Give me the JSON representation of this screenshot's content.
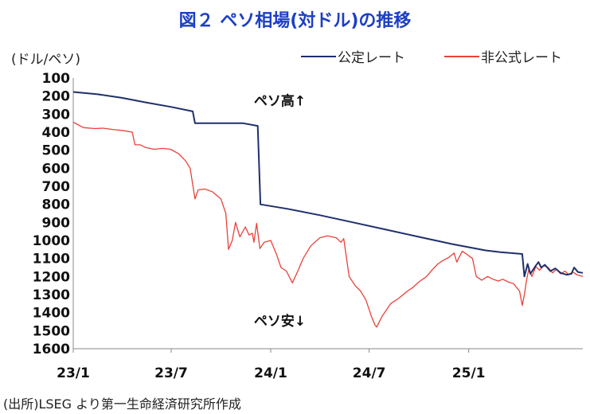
{
  "title": "図２ ペソ相場(対ドル)の推移",
  "unit_label": "(ドル/ペソ)",
  "source": "(出所)LSEG より第一生命経済研究所作成",
  "colors": {
    "official": "#1f2f6b",
    "unofficial": "#e8423a",
    "title": "#1c3fc4"
  },
  "chart_data": {
    "type": "line",
    "title": "図２ ペソ相場(対ドル)の推移",
    "ylabel": "(ドル/ペソ)",
    "xlabel": "",
    "ylim": [
      100,
      1600
    ],
    "y_inverted": true,
    "y_ticks": [
      100,
      200,
      300,
      400,
      500,
      600,
      700,
      800,
      900,
      1000,
      1100,
      1200,
      1300,
      1400,
      1500,
      1600
    ],
    "x_range": [
      "2023-01-01",
      "2025-07-31"
    ],
    "x_ticks": [
      {
        "date": "2023-01-01",
        "label": "23/1"
      },
      {
        "date": "2023-07-01",
        "label": "23/7"
      },
      {
        "date": "2024-01-01",
        "label": "24/1"
      },
      {
        "date": "2024-07-01",
        "label": "24/7"
      },
      {
        "date": "2025-01-01",
        "label": "25/1"
      }
    ],
    "grid": false,
    "legend": "top-right",
    "annotations": [
      {
        "text": "ペソ高↑",
        "date": "2023-12-01",
        "value": 225
      },
      {
        "text": "ペソ安↓",
        "date": "2023-12-01",
        "value": 1445
      }
    ],
    "series": [
      {
        "name": "公定レート",
        "color": "#1f2f6b",
        "points": [
          [
            "2023-01-01",
            177
          ],
          [
            "2023-02-15",
            190
          ],
          [
            "2023-04-01",
            210
          ],
          [
            "2023-05-15",
            235
          ],
          [
            "2023-07-01",
            260
          ],
          [
            "2023-08-10",
            285
          ],
          [
            "2023-08-14",
            350
          ],
          [
            "2023-09-30",
            350
          ],
          [
            "2023-11-10",
            350
          ],
          [
            "2023-12-08",
            365
          ],
          [
            "2023-12-13",
            800
          ],
          [
            "2024-02-01",
            825
          ],
          [
            "2024-04-01",
            860
          ],
          [
            "2024-06-01",
            900
          ],
          [
            "2024-08-01",
            940
          ],
          [
            "2024-10-01",
            980
          ],
          [
            "2024-12-01",
            1020
          ],
          [
            "2025-02-01",
            1055
          ],
          [
            "2025-03-01",
            1065
          ],
          [
            "2025-04-10",
            1075
          ],
          [
            "2025-04-14",
            1200
          ],
          [
            "2025-04-20",
            1130
          ],
          [
            "2025-04-25",
            1185
          ],
          [
            "2025-05-05",
            1140
          ],
          [
            "2025-05-10",
            1120
          ],
          [
            "2025-05-15",
            1150
          ],
          [
            "2025-05-22",
            1135
          ],
          [
            "2025-06-01",
            1170
          ],
          [
            "2025-06-10",
            1155
          ],
          [
            "2025-06-20",
            1180
          ],
          [
            "2025-07-01",
            1190
          ],
          [
            "2025-07-10",
            1185
          ],
          [
            "2025-07-15",
            1150
          ],
          [
            "2025-07-22",
            1175
          ],
          [
            "2025-07-31",
            1180
          ]
        ]
      },
      {
        "name": "非公式レート",
        "color": "#e8423a",
        "points": [
          [
            "2023-01-01",
            345
          ],
          [
            "2023-01-20",
            375
          ],
          [
            "2023-02-10",
            380
          ],
          [
            "2023-02-25",
            378
          ],
          [
            "2023-03-15",
            385
          ],
          [
            "2023-04-05",
            392
          ],
          [
            "2023-04-20",
            400
          ],
          [
            "2023-04-25",
            470
          ],
          [
            "2023-05-05",
            470
          ],
          [
            "2023-05-15",
            485
          ],
          [
            "2023-05-30",
            495
          ],
          [
            "2023-06-15",
            490
          ],
          [
            "2023-06-30",
            495
          ],
          [
            "2023-07-15",
            520
          ],
          [
            "2023-07-28",
            560
          ],
          [
            "2023-08-05",
            600
          ],
          [
            "2023-08-14",
            770
          ],
          [
            "2023-08-20",
            720
          ],
          [
            "2023-09-01",
            715
          ],
          [
            "2023-09-15",
            730
          ],
          [
            "2023-10-01",
            770
          ],
          [
            "2023-10-10",
            850
          ],
          [
            "2023-10-15",
            1050
          ],
          [
            "2023-10-22",
            1000
          ],
          [
            "2023-10-28",
            900
          ],
          [
            "2023-11-05",
            980
          ],
          [
            "2023-11-15",
            925
          ],
          [
            "2023-11-22",
            970
          ],
          [
            "2023-11-28",
            960
          ],
          [
            "2023-12-01",
            1010
          ],
          [
            "2023-12-06",
            905
          ],
          [
            "2023-12-12",
            1045
          ],
          [
            "2023-12-20",
            1010
          ],
          [
            "2024-01-01",
            1000
          ],
          [
            "2024-01-12",
            1080
          ],
          [
            "2024-01-20",
            1150
          ],
          [
            "2024-01-30",
            1170
          ],
          [
            "2024-02-10",
            1235
          ],
          [
            "2024-02-20",
            1170
          ],
          [
            "2024-03-01",
            1100
          ],
          [
            "2024-03-15",
            1030
          ],
          [
            "2024-04-01",
            985
          ],
          [
            "2024-04-15",
            975
          ],
          [
            "2024-05-01",
            985
          ],
          [
            "2024-05-10",
            1010
          ],
          [
            "2024-05-15",
            990
          ],
          [
            "2024-05-25",
            1200
          ],
          [
            "2024-06-05",
            1250
          ],
          [
            "2024-06-15",
            1280
          ],
          [
            "2024-06-25",
            1330
          ],
          [
            "2024-07-05",
            1420
          ],
          [
            "2024-07-12",
            1470
          ],
          [
            "2024-07-15",
            1480
          ],
          [
            "2024-07-25",
            1420
          ],
          [
            "2024-08-10",
            1350
          ],
          [
            "2024-08-25",
            1320
          ],
          [
            "2024-09-10",
            1280
          ],
          [
            "2024-09-20",
            1260
          ],
          [
            "2024-10-01",
            1230
          ],
          [
            "2024-10-15",
            1200
          ],
          [
            "2024-10-25",
            1165
          ],
          [
            "2024-11-05",
            1130
          ],
          [
            "2024-11-15",
            1110
          ],
          [
            "2024-11-25",
            1095
          ],
          [
            "2024-12-05",
            1070
          ],
          [
            "2024-12-10",
            1120
          ],
          [
            "2024-12-20",
            1060
          ],
          [
            "2024-12-30",
            1080
          ],
          [
            "2025-01-08",
            1100
          ],
          [
            "2025-01-15",
            1200
          ],
          [
            "2025-01-25",
            1220
          ],
          [
            "2025-02-05",
            1200
          ],
          [
            "2025-02-15",
            1215
          ],
          [
            "2025-02-25",
            1225
          ],
          [
            "2025-03-05",
            1215
          ],
          [
            "2025-03-15",
            1230
          ],
          [
            "2025-03-25",
            1240
          ],
          [
            "2025-04-05",
            1280
          ],
          [
            "2025-04-10",
            1360
          ],
          [
            "2025-04-14",
            1300
          ],
          [
            "2025-04-18",
            1220
          ],
          [
            "2025-04-22",
            1160
          ],
          [
            "2025-04-28",
            1200
          ],
          [
            "2025-05-05",
            1145
          ],
          [
            "2025-05-12",
            1165
          ],
          [
            "2025-05-20",
            1140
          ],
          [
            "2025-05-28",
            1150
          ],
          [
            "2025-06-05",
            1180
          ],
          [
            "2025-06-12",
            1160
          ],
          [
            "2025-06-20",
            1185
          ],
          [
            "2025-06-28",
            1170
          ],
          [
            "2025-07-05",
            1190
          ],
          [
            "2025-07-12",
            1175
          ],
          [
            "2025-07-20",
            1190
          ],
          [
            "2025-07-31",
            1200
          ]
        ]
      }
    ]
  }
}
